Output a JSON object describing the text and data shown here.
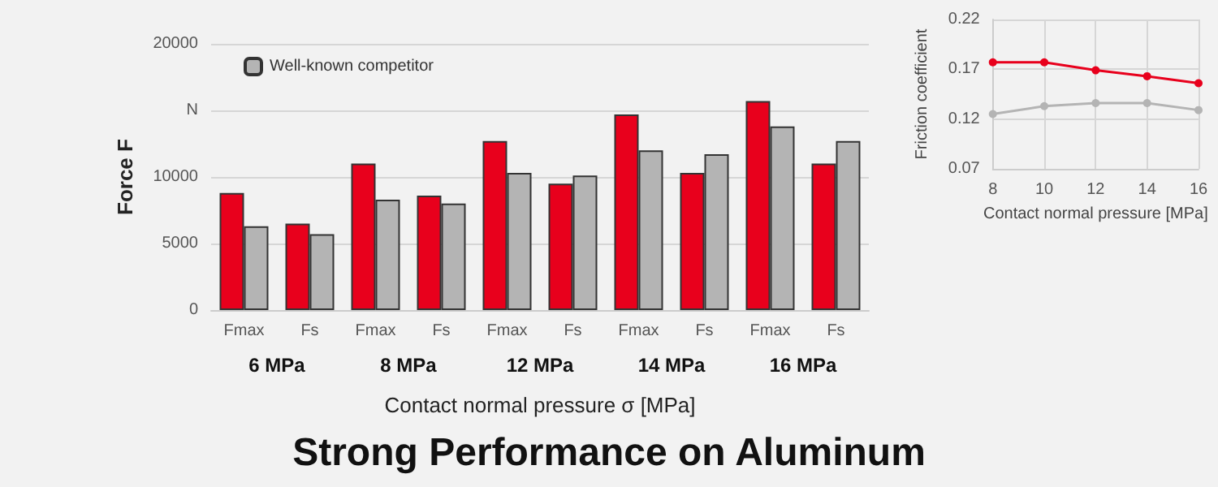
{
  "chart_data": [
    {
      "type": "bar",
      "title": "Strong Performance on Aluminum",
      "xlabel": "Contact normal pressure σ [MPa]",
      "ylabel": "Force F",
      "categories": [
        "Fmax",
        "Fs",
        "Fmax",
        "Fs",
        "Fmax",
        "Fs",
        "Fmax",
        "Fs",
        "Fmax",
        "Fs"
      ],
      "series": [
        {
          "color": "#e8001c",
          "values": [
            8800,
            6500,
            11000,
            8600,
            12700,
            9500,
            14700,
            10300,
            15700,
            11000
          ]
        },
        {
          "name": "Well-known competitor",
          "color": "#b4b4b4",
          "values": [
            6300,
            5700,
            8300,
            8000,
            10300,
            10100,
            12000,
            11700,
            13800,
            12700
          ]
        }
      ],
      "annotations": [
        "6 MPa",
        "8 MPa",
        "12 MPa",
        "14 MPa",
        "16 MPa"
      ],
      "ylim": [
        0,
        20000
      ],
      "yticks": [
        0,
        5000,
        10000,
        {
          "value": 15000,
          "label": "N"
        },
        20000
      ],
      "grid": "y",
      "legend": "top left"
    },
    {
      "type": "line",
      "xlabel": "Contact normal pressure [MPa]",
      "ylabel": "Friction coefficient",
      "x": [
        8,
        10,
        12,
        14,
        16
      ],
      "series": [
        {
          "color": "#e8001c",
          "values": [
            0.177,
            0.177,
            0.169,
            0.163,
            0.156
          ]
        },
        {
          "color": "#b4b4b4",
          "values": [
            0.125,
            0.133,
            0.136,
            0.136,
            0.129
          ]
        }
      ],
      "xlim": [
        8,
        16
      ],
      "xticks": [
        8,
        10,
        12,
        14,
        16
      ],
      "ylim": [
        0.07,
        0.22
      ],
      "yticks": [
        0.07,
        0.12,
        0.17,
        0.22
      ],
      "grid": true,
      "marker": "circle",
      "line_style": "solid"
    }
  ]
}
